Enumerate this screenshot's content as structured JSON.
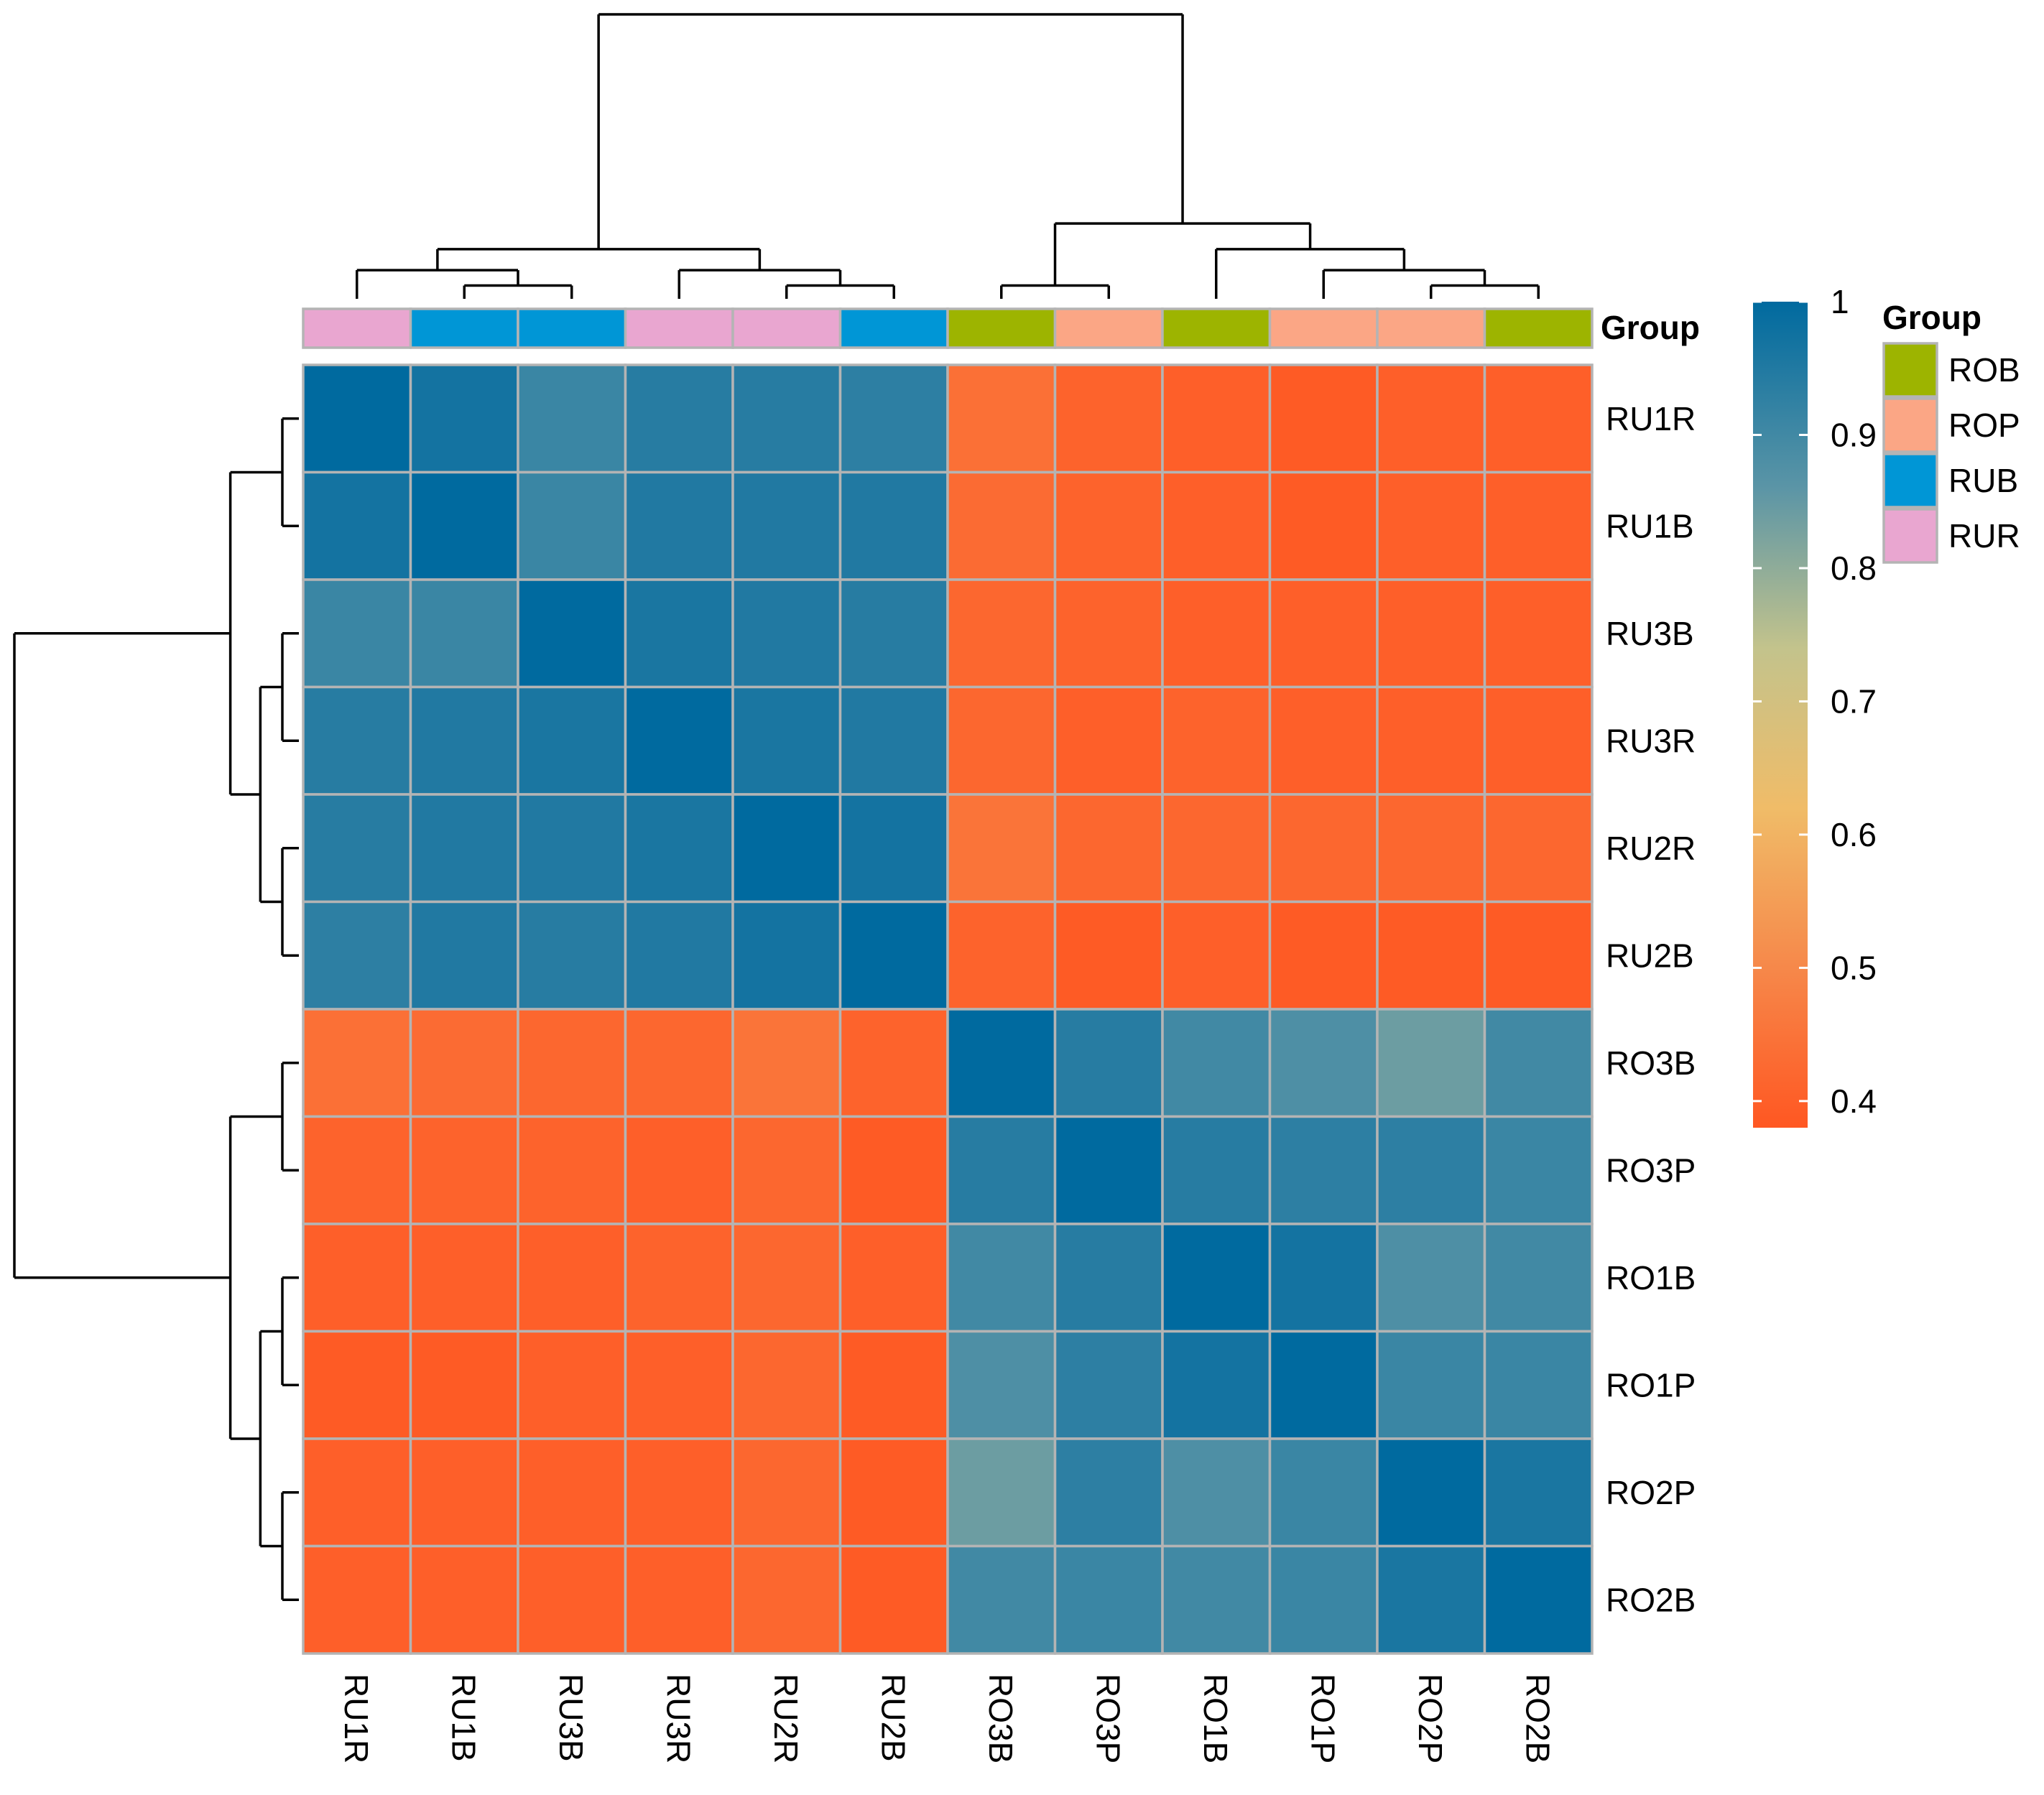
{
  "chart_data": {
    "type": "heatmap",
    "title": "",
    "rows": [
      "RU1R",
      "RU1B",
      "RU3B",
      "RU3R",
      "RU2R",
      "RU2B",
      "RO3B",
      "RO3P",
      "RO1B",
      "RO1P",
      "RO2P",
      "RO2B"
    ],
    "columns": [
      "RU1R",
      "RU1B",
      "RU3B",
      "RU3R",
      "RU2R",
      "RU2B",
      "RO3B",
      "RO3P",
      "RO1B",
      "RO1P",
      "RO2P",
      "RO2B"
    ],
    "values": [
      [
        1.0,
        0.97,
        0.91,
        0.94,
        0.94,
        0.93,
        0.44,
        0.41,
        0.4,
        0.39,
        0.4,
        0.4
      ],
      [
        0.97,
        1.0,
        0.91,
        0.95,
        0.95,
        0.95,
        0.43,
        0.41,
        0.4,
        0.39,
        0.4,
        0.4
      ],
      [
        0.91,
        0.91,
        1.0,
        0.96,
        0.95,
        0.94,
        0.42,
        0.41,
        0.4,
        0.4,
        0.4,
        0.4
      ],
      [
        0.94,
        0.95,
        0.96,
        1.0,
        0.96,
        0.95,
        0.42,
        0.4,
        0.41,
        0.4,
        0.4,
        0.4
      ],
      [
        0.94,
        0.95,
        0.95,
        0.96,
        1.0,
        0.97,
        0.45,
        0.42,
        0.42,
        0.42,
        0.42,
        0.42
      ],
      [
        0.93,
        0.95,
        0.94,
        0.95,
        0.97,
        1.0,
        0.41,
        0.39,
        0.4,
        0.39,
        0.39,
        0.39
      ],
      [
        0.44,
        0.43,
        0.42,
        0.42,
        0.45,
        0.41,
        1.0,
        0.94,
        0.9,
        0.88,
        0.84,
        0.9
      ],
      [
        0.41,
        0.41,
        0.41,
        0.4,
        0.42,
        0.39,
        0.94,
        1.0,
        0.94,
        0.93,
        0.93,
        0.91
      ],
      [
        0.4,
        0.4,
        0.4,
        0.41,
        0.42,
        0.4,
        0.9,
        0.94,
        1.0,
        0.97,
        0.88,
        0.9
      ],
      [
        0.39,
        0.39,
        0.4,
        0.4,
        0.42,
        0.39,
        0.88,
        0.93,
        0.97,
        1.0,
        0.91,
        0.91
      ],
      [
        0.4,
        0.4,
        0.4,
        0.4,
        0.42,
        0.39,
        0.84,
        0.93,
        0.88,
        0.91,
        1.0,
        0.96
      ],
      [
        0.4,
        0.4,
        0.4,
        0.4,
        0.42,
        0.39,
        0.9,
        0.91,
        0.9,
        0.91,
        0.96,
        1.0
      ]
    ],
    "column_groups": [
      "RUR",
      "RUB",
      "RUB",
      "RUR",
      "RUR",
      "RUB",
      "ROB",
      "ROP",
      "ROB",
      "ROP",
      "ROP",
      "ROB"
    ],
    "annotation_title": "Group",
    "legend": {
      "title": "Group",
      "entries": [
        {
          "label": "ROB",
          "color": "#9db400"
        },
        {
          "label": "ROP",
          "color": "#fba685"
        },
        {
          "label": "RUB",
          "color": "#0096d6"
        },
        {
          "label": "RUR",
          "color": "#e9a6d0"
        }
      ]
    },
    "colorbar": {
      "min": 0.38,
      "max": 1.0,
      "ticks": [
        1,
        0.9,
        0.8,
        0.7,
        0.6,
        0.5,
        0.4
      ],
      "tick_labels": [
        "1",
        "0.9",
        "0.8",
        "0.7",
        "0.6",
        "0.5",
        "0.4"
      ],
      "color_stops": [
        {
          "value": 0.38,
          "color": "#ff5722"
        },
        {
          "value": 0.5,
          "color": "#f6884a"
        },
        {
          "value": 0.62,
          "color": "#f0bc68"
        },
        {
          "value": 0.74,
          "color": "#c3c38c"
        },
        {
          "value": 0.86,
          "color": "#5b95a6"
        },
        {
          "value": 1.0,
          "color": "#006a9f"
        }
      ]
    },
    "dendrograms": {
      "column_tree": "(((RU1R,(RU1B,RU3B)),(RU3R,(RU2R,RU2B))),((RO3B,RO3P),(RO1B,(RO1P,(RO2P,RO2B)))))",
      "row_tree": "(((RU1R,RU1B),((RU3B,RU3R),(RU2R,RU2B))),((RO3B,RO3P),((RO1B,RO1P),(RO2P,RO2B))))"
    },
    "cell_border_color": "#b4b4b4"
  }
}
